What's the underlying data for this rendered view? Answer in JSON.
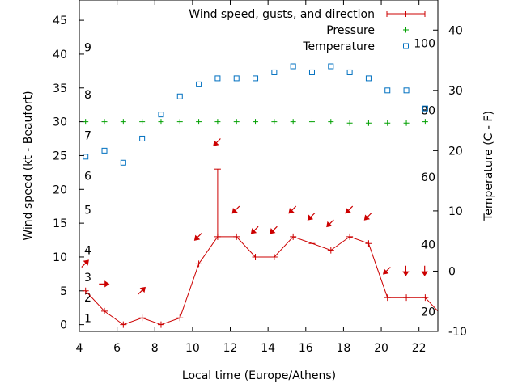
{
  "chart_data": {
    "type": "line",
    "xlabel": "Local time (Europe/Athens)",
    "ylabel": "Wind speed (kt - Beaufort)",
    "y2label": "Temperature (C - F)",
    "xlim": [
      4,
      23
    ],
    "ylim": [
      -1,
      48
    ],
    "y2lim": [
      -10,
      45
    ],
    "x_ticks": [
      4,
      6,
      8,
      10,
      12,
      14,
      16,
      18,
      20,
      22
    ],
    "y_ticks": [
      0,
      5,
      10,
      15,
      20,
      25,
      30,
      35,
      40,
      45
    ],
    "y2_ticks": [
      -10,
      0,
      10,
      20,
      30,
      40
    ],
    "beaufort_labels": [
      {
        "label": "1",
        "y": 1
      },
      {
        "label": "2",
        "y": 4
      },
      {
        "label": "3",
        "y": 7
      },
      {
        "label": "4",
        "y": 11
      },
      {
        "label": "5",
        "y": 17
      },
      {
        "label": "6",
        "y": 22
      },
      {
        "label": "7",
        "y": 28
      },
      {
        "label": "8",
        "y": 34
      },
      {
        "label": "9",
        "y": 41
      }
    ],
    "fahrenheit_labels": [
      {
        "label": "20",
        "y2": -6.7
      },
      {
        "label": "40",
        "y2": 4.4
      },
      {
        "label": "60",
        "y2": 15.6
      },
      {
        "label": "80",
        "y2": 26.7
      },
      {
        "label": "100",
        "y2": 37.8
      }
    ],
    "series": [
      {
        "name": "Wind speed, gusts, and direction",
        "color": "#cc0000",
        "x": [
          4.33,
          5.33,
          6.33,
          7.33,
          8.33,
          9.33,
          10.33,
          11.33,
          12.33,
          13.33,
          14.33,
          15.33,
          16.33,
          17.33,
          18.33,
          19.33,
          20.33,
          21.33,
          22.33,
          23.0
        ],
        "values": [
          5,
          2,
          0,
          1,
          0,
          1,
          9,
          13,
          13,
          10,
          10,
          13,
          12,
          11,
          13,
          12,
          4,
          4,
          4,
          2
        ],
        "gusts": [
          null,
          null,
          null,
          null,
          null,
          null,
          null,
          23,
          null,
          null,
          null,
          null,
          null,
          null,
          null,
          null,
          null,
          null,
          null,
          null
        ],
        "direction_arrows": [
          {
            "x": 4.3,
            "y": 9,
            "icon": "arrow-up-right"
          },
          {
            "x": 5.3,
            "y": 6,
            "icon": "arrow-right"
          },
          {
            "x": 7.3,
            "y": 5,
            "icon": "arrow-up-right"
          },
          {
            "x": 10.3,
            "y": 13,
            "icon": "arrow-down-left"
          },
          {
            "x": 11.3,
            "y": 27,
            "icon": "arrow-down-left"
          },
          {
            "x": 12.3,
            "y": 17,
            "icon": "arrow-down-left"
          },
          {
            "x": 13.3,
            "y": 14,
            "icon": "arrow-down-left"
          },
          {
            "x": 14.3,
            "y": 14,
            "icon": "arrow-down-left"
          },
          {
            "x": 15.3,
            "y": 17,
            "icon": "arrow-down-left"
          },
          {
            "x": 16.3,
            "y": 16,
            "icon": "arrow-down-left"
          },
          {
            "x": 17.3,
            "y": 15,
            "icon": "arrow-down-left"
          },
          {
            "x": 18.3,
            "y": 17,
            "icon": "arrow-down-left"
          },
          {
            "x": 19.3,
            "y": 16,
            "icon": "arrow-down-left"
          },
          {
            "x": 20.3,
            "y": 8,
            "icon": "arrow-down-left"
          },
          {
            "x": 21.3,
            "y": 8,
            "icon": "arrow-down"
          },
          {
            "x": 22.3,
            "y": 8,
            "icon": "arrow-down"
          }
        ]
      },
      {
        "name": "Pressure",
        "color": "#00a000",
        "marker": "plus",
        "x": [
          4.33,
          5.33,
          6.33,
          7.33,
          8.33,
          9.33,
          10.33,
          11.33,
          12.33,
          13.33,
          14.33,
          15.33,
          16.33,
          17.33,
          18.33,
          19.33,
          20.33,
          21.33,
          22.33
        ],
        "values": [
          30,
          30,
          30,
          30,
          30,
          30,
          30,
          30,
          30,
          30,
          30,
          30,
          30,
          30,
          29.8,
          29.8,
          29.8,
          29.8,
          30
        ]
      },
      {
        "name": "Temperature",
        "color": "#0070c0",
        "marker": "open-square",
        "axis": "y2",
        "x": [
          4.33,
          5.33,
          6.33,
          7.33,
          8.33,
          9.33,
          10.33,
          11.33,
          12.33,
          13.33,
          14.33,
          15.33,
          16.33,
          17.33,
          18.33,
          19.33,
          20.33,
          21.33,
          22.33
        ],
        "values": [
          19,
          20,
          18,
          22,
          26,
          29,
          31,
          32,
          32,
          32,
          33,
          34,
          33,
          34,
          33,
          32,
          30,
          30,
          27
        ]
      }
    ],
    "legend_position": "top-right",
    "grid": false
  }
}
